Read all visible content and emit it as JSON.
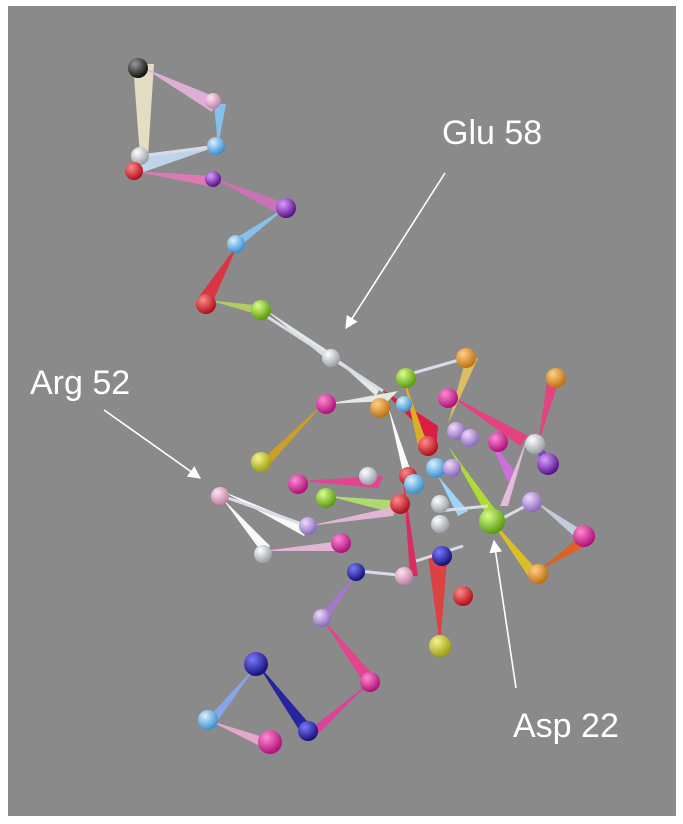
{
  "labels": {
    "glu": "Glu 58",
    "arg": "Arg 52",
    "asp": "Asp 22"
  },
  "colors": {
    "background": "#8a8a8a",
    "arrow": "#ffffff",
    "label_text": "#ffffff"
  }
}
